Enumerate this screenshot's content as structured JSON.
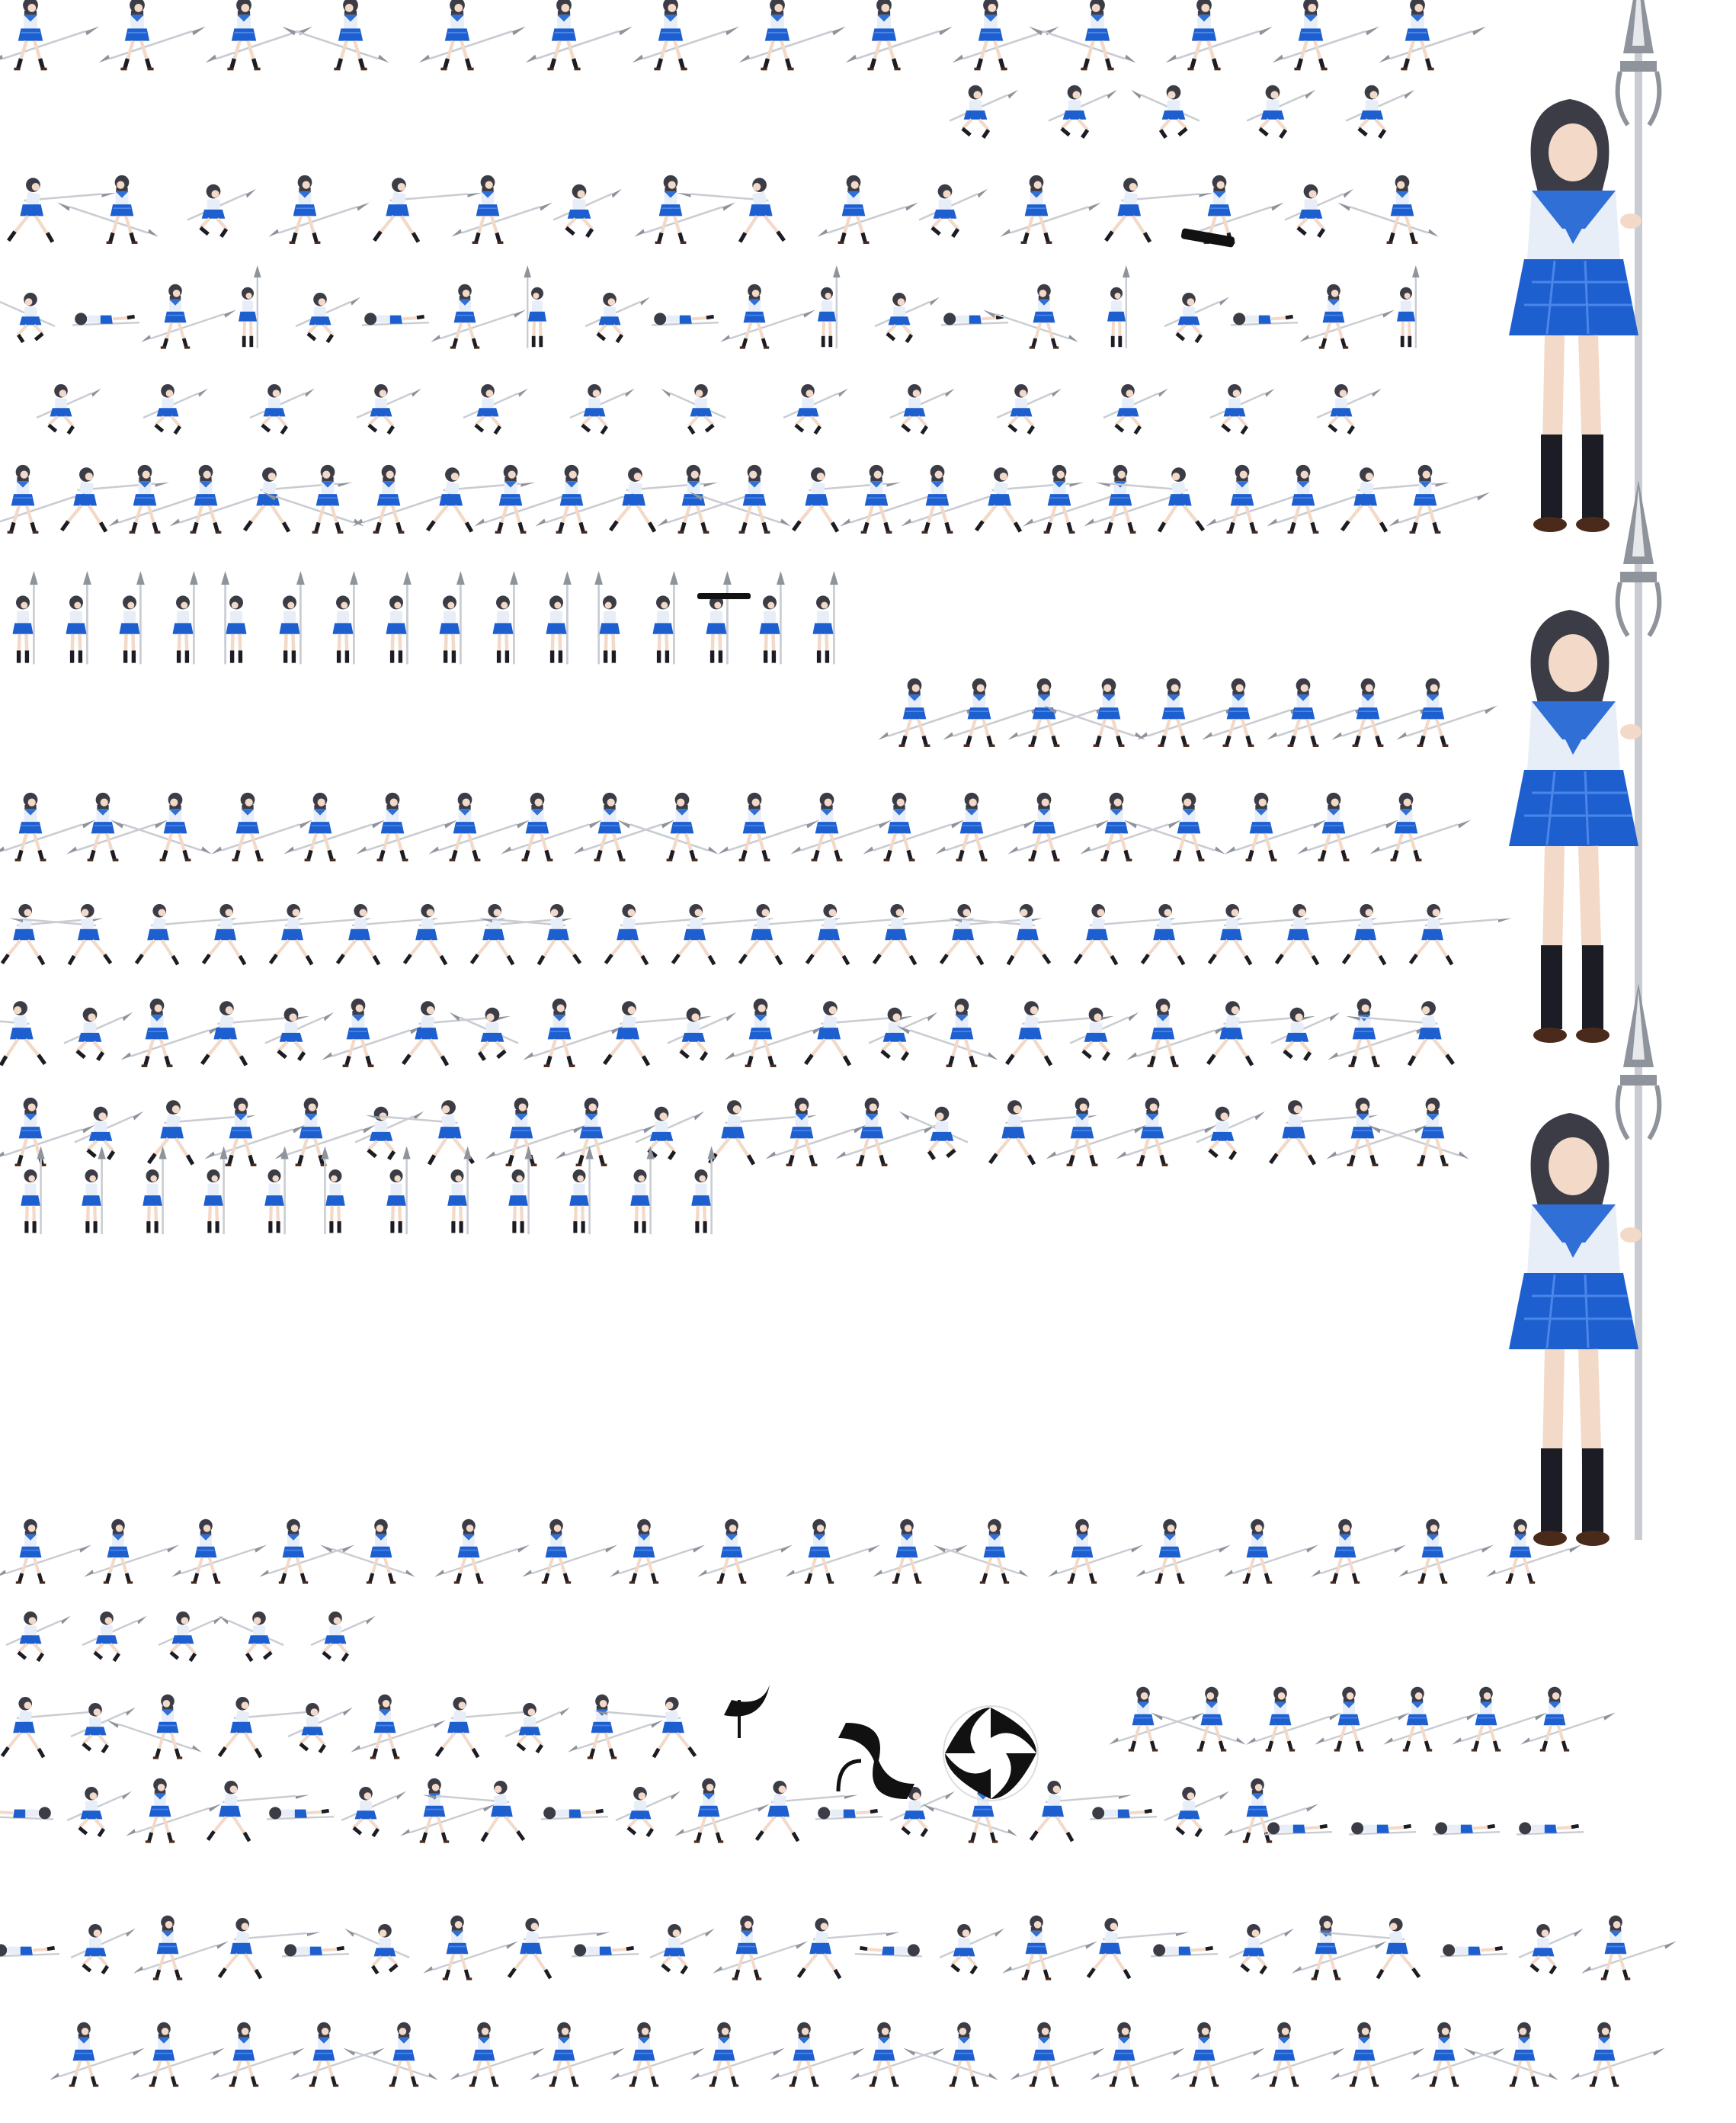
{
  "sprite_sheet": {
    "palette": {
      "background": "#ffffff",
      "hair": "#3c3c46",
      "skin": "#f3d9c8",
      "shirt": "#e8eef8",
      "collar": "#2f6fd6",
      "skirt": "#1e5fd0",
      "skirt_light": "#4a86e8",
      "socks": "#1c1c24",
      "shoes": "#4a2a1a",
      "spear_shaft": "#c9ccd2",
      "spear_blade": "#8e939c",
      "spear_edge": "#e6e8ec",
      "effect_dark": "#111111"
    },
    "subject": "schoolgirl-spear-fighter",
    "frame_kinds": [
      "idle-stance",
      "spear-thrust",
      "jump",
      "knockdown",
      "crouch",
      "portrait"
    ],
    "effects": [
      "slash-swirl-effect",
      "slash-arc-effect"
    ],
    "dropped_item": "black-spear-case"
  }
}
